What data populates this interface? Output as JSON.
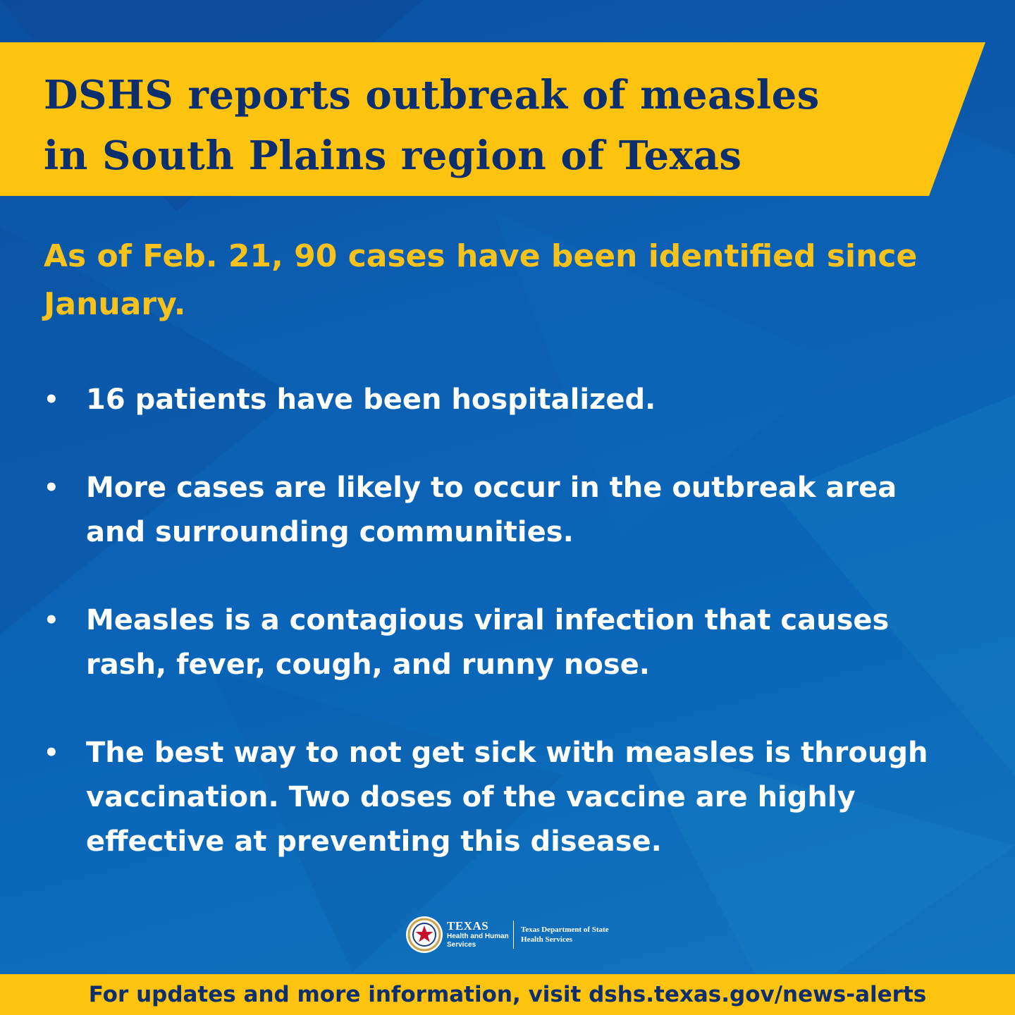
{
  "banner": {
    "title_line1": "DSHS reports outbreak of measles",
    "title_line2": "in South Plains region of Texas",
    "color": "#fec30f"
  },
  "subtitle": "As of Feb. 21, 90 cases have been identified since January.",
  "bullets": [
    {
      "text": "16 patients have been hospitalized."
    },
    {
      "text": "More cases are likely to occur in the outbreak area and surrounding communities."
    },
    {
      "text": "Measles is a contagious viral infection that causes rash, fever, cough, and runny nose."
    },
    {
      "text": "The best way to not get sick with measles is through vaccination. Two doses of the vaccine are highly effective at preventing this disease."
    }
  ],
  "bullet_symbol": "•",
  "logo": {
    "icon": "texas-star-seal-icon",
    "hhs_title": "TEXAS",
    "hhs_line1": "Health and Human",
    "hhs_line2": "Services",
    "dshs_line1": "Texas Department of State",
    "dshs_line2": "Health Services"
  },
  "footer": {
    "text": "For updates and more information, visit dshs.texas.gov/news-alerts",
    "color": "#fec30f"
  },
  "colors": {
    "background": "#0c60b4",
    "title_text": "#0d2f6e",
    "subtitle_text": "#f7c21c",
    "body_text": "#ffffff"
  }
}
